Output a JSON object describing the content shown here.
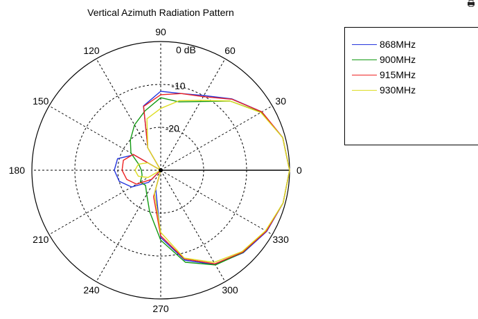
{
  "chart_data": {
    "type": "polar-line",
    "title": "Vertical Azimuth Radiation Pattern",
    "radial_unit_label": "0 dB",
    "radial_tick_labels": [
      "-10",
      "-20"
    ],
    "radial_range_db": [
      -30,
      0
    ],
    "radial_ticks_db": [
      0,
      -10,
      -20
    ],
    "angle_tick_labels": [
      "0",
      "30",
      "60",
      "90",
      "120",
      "150",
      "180",
      "210",
      "240",
      "270",
      "300",
      "330"
    ],
    "angle_ticks_deg": [
      0,
      30,
      60,
      90,
      120,
      150,
      180,
      210,
      240,
      270,
      300,
      330
    ],
    "grid": true,
    "legend_position": "right",
    "angles_deg": [
      0,
      15,
      30,
      45,
      60,
      75,
      90,
      105,
      120,
      135,
      150,
      165,
      180,
      195,
      210,
      225,
      240,
      255,
      270,
      285,
      300,
      315,
      330,
      345,
      360
    ],
    "series": [
      {
        "name": "868MHz",
        "color": "#2233dd",
        "values_db": [
          0,
          -0.6,
          -2.8,
          -6.5,
          -9.9,
          -11.5,
          -11.6,
          -14.5,
          -24,
          -30,
          -22.8,
          -19.6,
          -19.2,
          -20,
          -22.2,
          -26,
          -30,
          -25.5,
          -14.3,
          -8.3,
          -4.6,
          -2.8,
          -1.5,
          -0.5,
          0
        ]
      },
      {
        "name": "900MHz",
        "color": "#119911",
        "values_db": [
          0,
          -0.6,
          -3,
          -7.2,
          -11.5,
          -13.5,
          -13.1,
          -15.7,
          -17.8,
          -20,
          -22,
          -24.7,
          -25.5,
          -25.5,
          -24.5,
          -25,
          -23.5,
          -20,
          -13.7,
          -7.8,
          -4.5,
          -2.9,
          -1.7,
          -0.5,
          0
        ]
      },
      {
        "name": "915MHz",
        "color": "#ee2222",
        "values_db": [
          0,
          -0.6,
          -2.8,
          -6.6,
          -10.2,
          -11.5,
          -12.4,
          -14.6,
          -24,
          -30,
          -22.6,
          -21,
          -21,
          -21.8,
          -23.5,
          -27,
          -30,
          -23.6,
          -14.7,
          -8.6,
          -4.8,
          -3,
          -1.6,
          -0.5,
          0
        ]
      },
      {
        "name": "930MHz",
        "color": "#dddd22",
        "values_db": [
          0,
          -0.6,
          -3.1,
          -7.2,
          -11.2,
          -13.2,
          -15.6,
          -17.6,
          -24,
          -30,
          -26.5,
          -24.6,
          -24,
          -24.6,
          -26.6,
          -30,
          -30,
          -24.4,
          -15.5,
          -8.8,
          -5.2,
          -3.2,
          -1.8,
          -0.5,
          0
        ]
      }
    ]
  },
  "corner_icon": "printer-icon"
}
